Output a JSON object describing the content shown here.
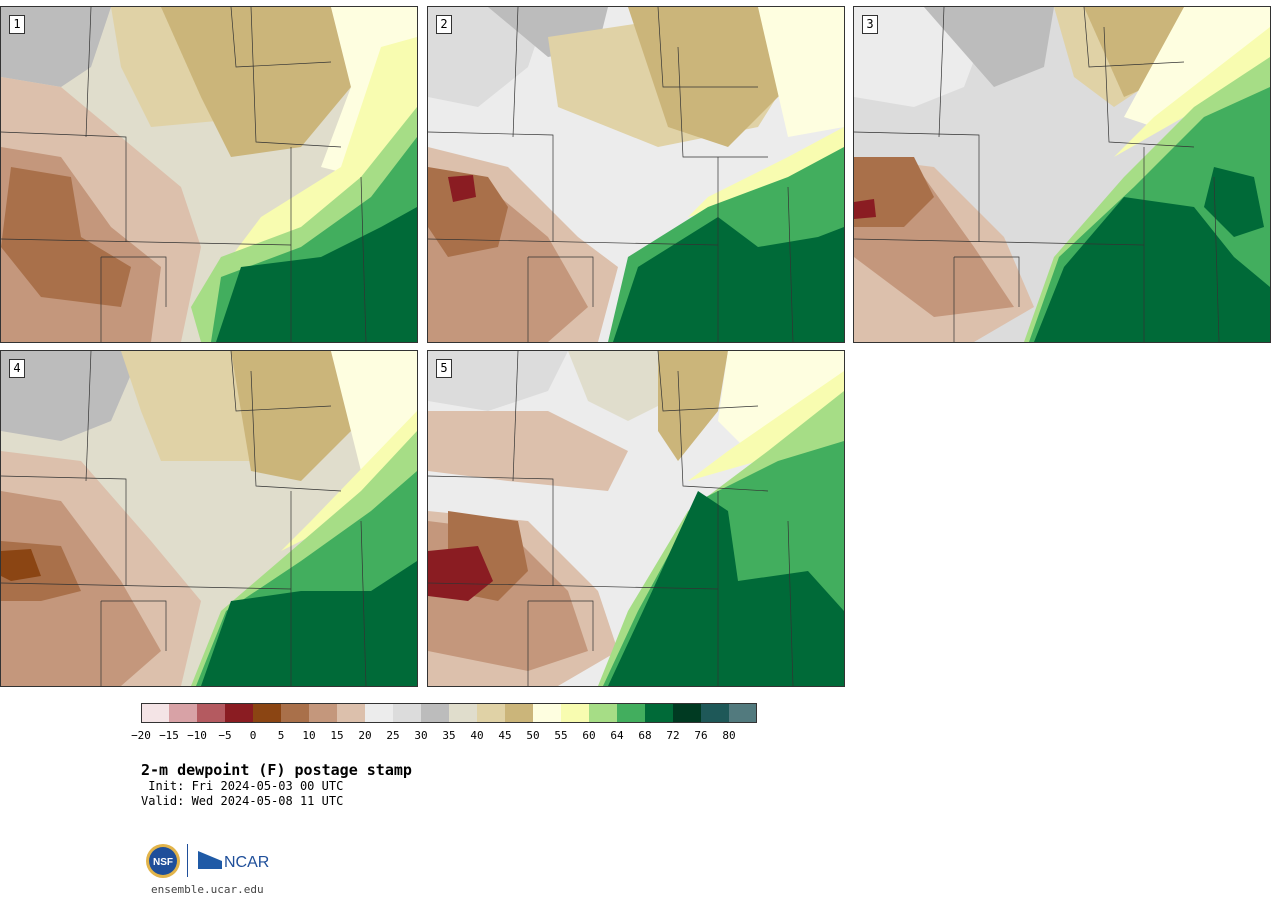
{
  "panels": [
    {
      "label": "1"
    },
    {
      "label": "2"
    },
    {
      "label": "3"
    },
    {
      "label": "4"
    },
    {
      "label": "5"
    }
  ],
  "colorbar": {
    "ticks": [
      "−20",
      "−15",
      "−10",
      "−5",
      "0",
      "5",
      "10",
      "15",
      "20",
      "25",
      "30",
      "35",
      "40",
      "45",
      "50",
      "55",
      "60",
      "64",
      "68",
      "72",
      "76",
      "80"
    ],
    "colors": [
      "#f4e4e6",
      "#d8a2a6",
      "#b45a60",
      "#8a1c22",
      "#8b4513",
      "#a9704a",
      "#c4977c",
      "#dcc0ac",
      "#ececec",
      "#dcdcdc",
      "#bcbcbc",
      "#e0ddcc",
      "#e0d2a6",
      "#cbb57a",
      "#fefee0",
      "#f8fcb0",
      "#a6dd86",
      "#42ae5e",
      "#006a38",
      "#003a22",
      "#1e5858",
      "#527a7e"
    ]
  },
  "title": "2-m dewpoint (F) postage stamp",
  "init": " Init: Fri 2024-05-03 00 UTC",
  "valid": "Valid: Wed 2024-05-08 11 UTC",
  "footer": {
    "nsf_text": "NSF",
    "ncar_text": "NCAR",
    "site": "ensemble.ucar.edu"
  }
}
